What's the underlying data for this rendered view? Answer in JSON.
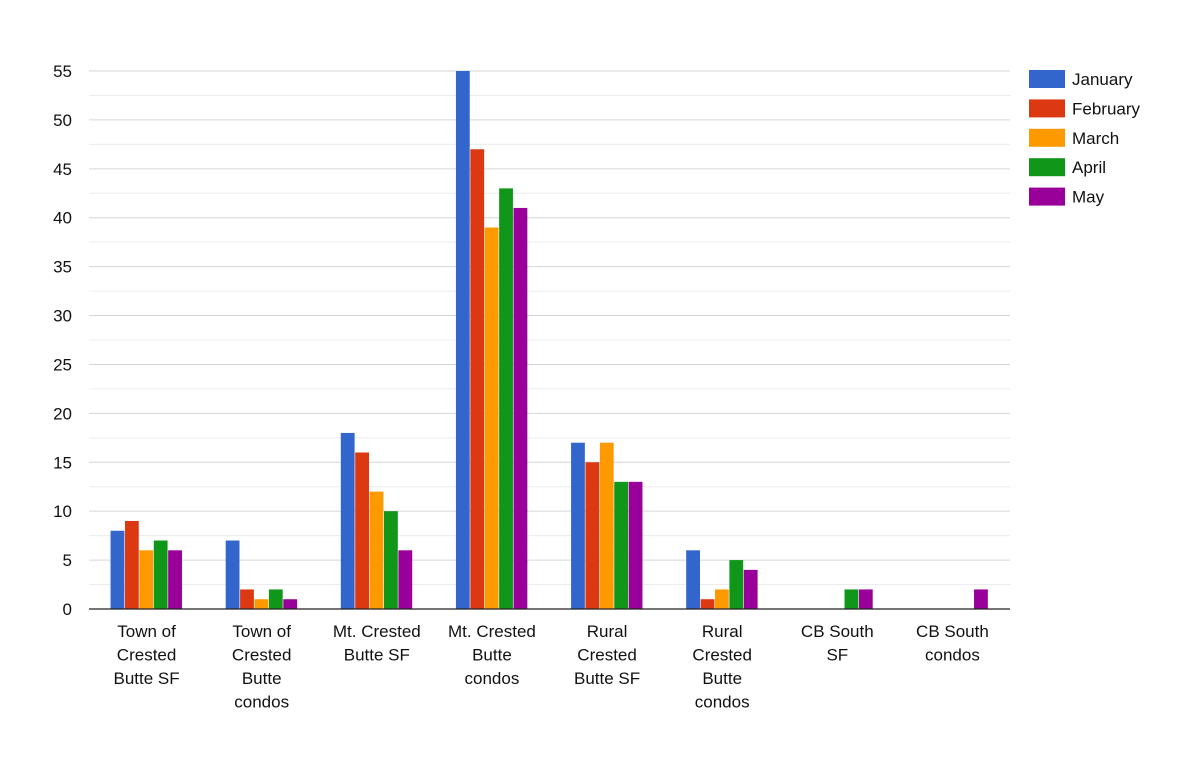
{
  "chart_data": {
    "type": "bar",
    "title": "",
    "xlabel": "",
    "ylabel": "",
    "ylim": [
      0,
      55
    ],
    "yticks": [
      0,
      5,
      10,
      15,
      20,
      25,
      30,
      35,
      40,
      45,
      50,
      55
    ],
    "grid": true,
    "legend_position": "right",
    "categories": [
      [
        "Town of",
        "Crested",
        "Butte SF"
      ],
      [
        "Town of",
        "Crested",
        "Butte",
        "condos"
      ],
      [
        "Mt. Crested",
        "Butte SF"
      ],
      [
        "Mt. Crested",
        "Butte",
        "condos"
      ],
      [
        "Rural",
        "Crested",
        "Butte SF"
      ],
      [
        "Rural",
        "Crested",
        "Butte",
        "condos"
      ],
      [
        "CB South",
        "SF"
      ],
      [
        "CB South",
        "condos"
      ]
    ],
    "series": [
      {
        "name": "January",
        "color": "#3366cc",
        "values": [
          8,
          7,
          18,
          55,
          17,
          6,
          0,
          0
        ]
      },
      {
        "name": "February",
        "color": "#dc3912",
        "values": [
          9,
          2,
          16,
          47,
          15,
          1,
          0,
          0
        ]
      },
      {
        "name": "March",
        "color": "#ff9900",
        "values": [
          6,
          1,
          12,
          39,
          17,
          2,
          0,
          0
        ]
      },
      {
        "name": "April",
        "color": "#109618",
        "values": [
          7,
          2,
          10,
          43,
          13,
          5,
          2,
          0
        ]
      },
      {
        "name": "May",
        "color": "#990099",
        "values": [
          6,
          1,
          6,
          41,
          13,
          4,
          2,
          2
        ]
      }
    ]
  }
}
